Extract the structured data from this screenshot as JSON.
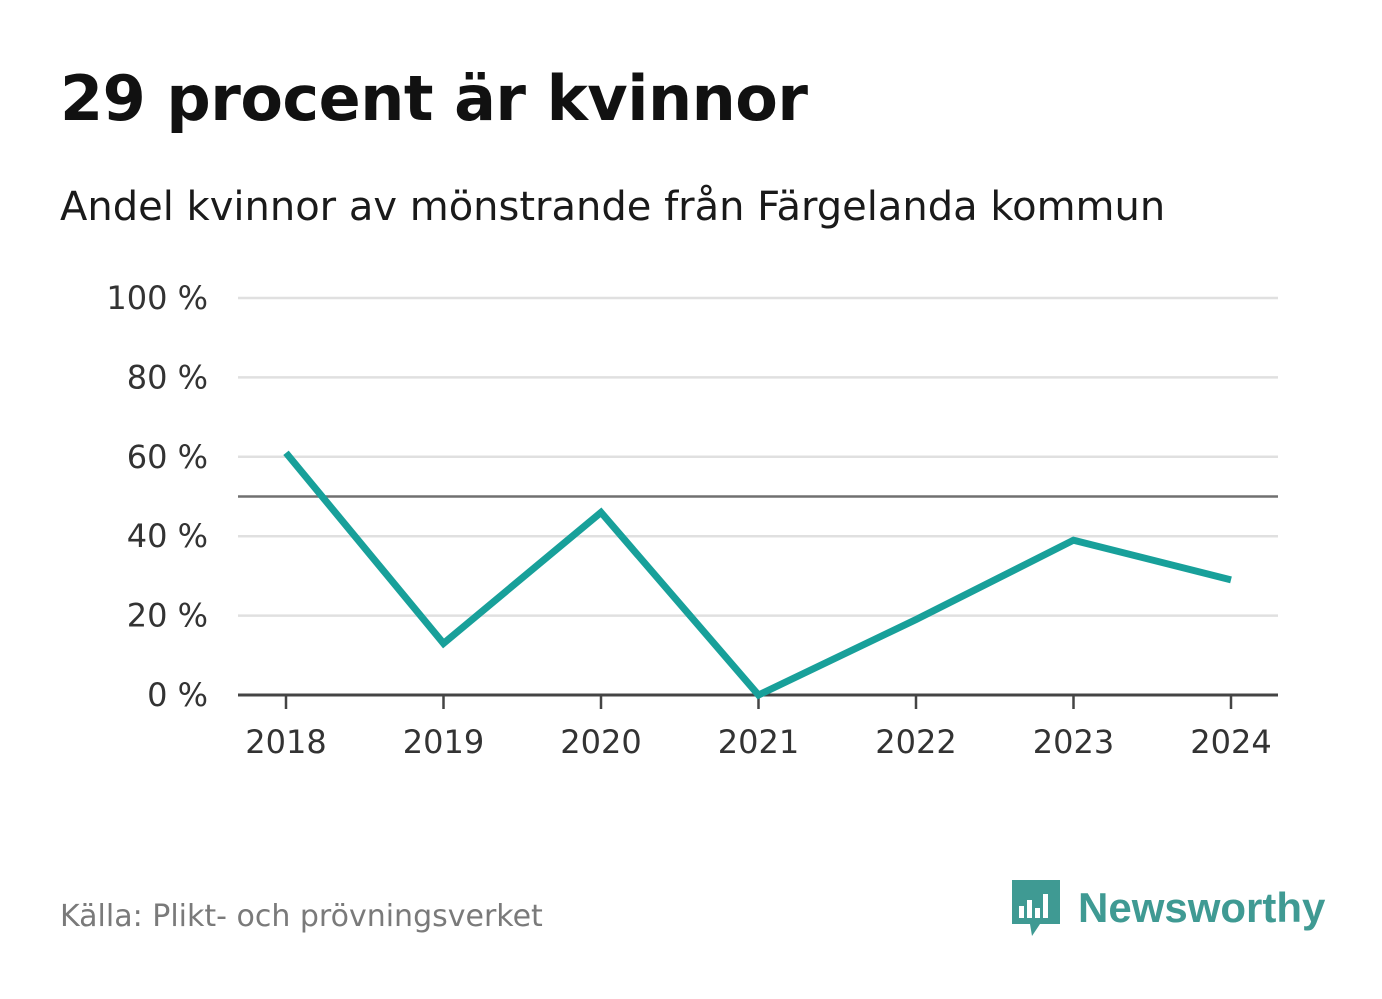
{
  "header": {
    "title": "29 procent är kvinnor",
    "subtitle": "Andel kvinnor av mönstrande från Färgelanda kommun"
  },
  "footer": {
    "source": "Källa: Plikt- och prövningsverket",
    "brand": "Newsworthy",
    "brand_icon": "bar-chart-speech-bubble-icon"
  },
  "colors": {
    "line": "#18a09a",
    "grid": "#e0e0e0",
    "reference": "#707070",
    "axis": "#444444",
    "brand": "#3f9a93"
  },
  "chart_data": {
    "type": "line",
    "title": "29 procent är kvinnor",
    "subtitle": "Andel kvinnor av mönstrande från Färgelanda kommun",
    "xlabel": "",
    "ylabel": "",
    "x": [
      "2018",
      "2019",
      "2020",
      "2021",
      "2022",
      "2023",
      "2024"
    ],
    "series": [
      {
        "name": "Andel kvinnor",
        "values": [
          61,
          13,
          46,
          0,
          19,
          39,
          29
        ]
      }
    ],
    "ylim": [
      0,
      100
    ],
    "yticks": [
      0,
      20,
      40,
      60,
      80,
      100
    ],
    "ytick_labels": [
      "0 %",
      "20 %",
      "40 %",
      "60 %",
      "80 %",
      "100 %"
    ],
    "reference_line": 50,
    "grid": true,
    "legend": "none"
  }
}
